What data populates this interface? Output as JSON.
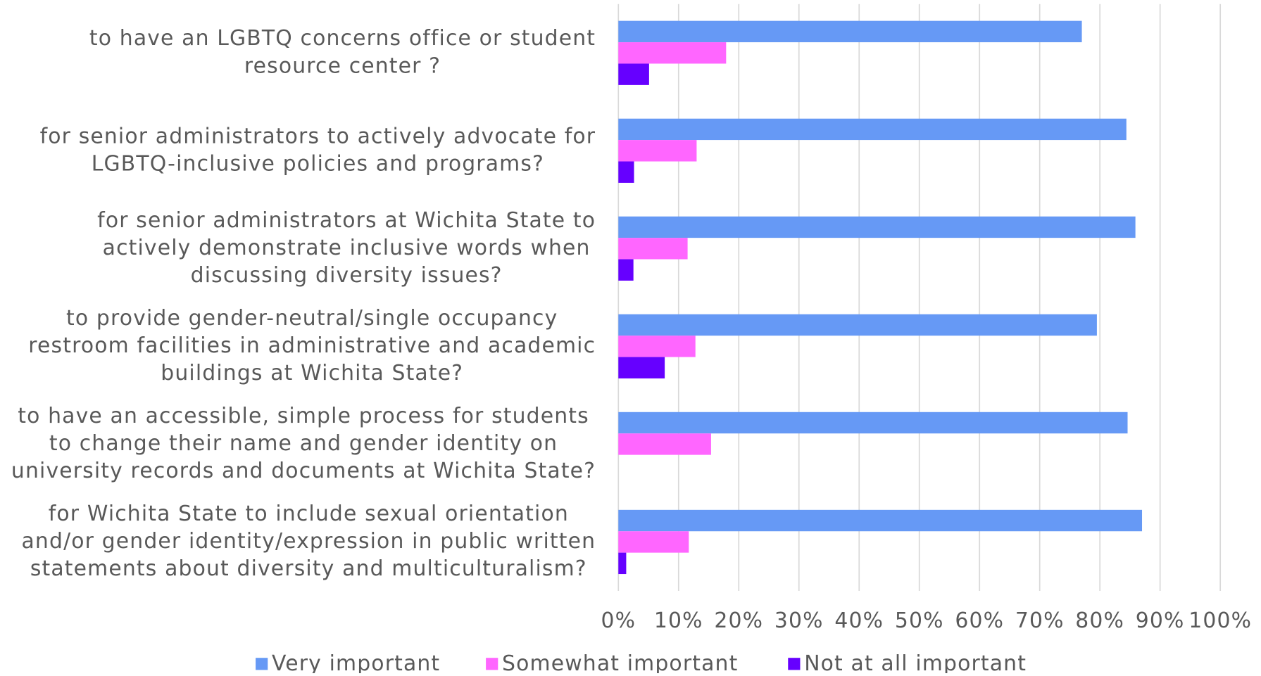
{
  "chart_data": {
    "type": "bar",
    "orientation": "horizontal",
    "categories": [
      [
        "to have an LGBTQ concerns office or student",
        "resource center ?"
      ],
      [
        "for senior administrators to actively advocate for",
        "LGBTQ-inclusive policies and programs?"
      ],
      [
        "for senior administrators at Wichita State to",
        "actively demonstrate inclusive words when",
        "discussing diversity issues?"
      ],
      [
        "to provide gender-neutral/single occupancy",
        "restroom facilities in administrative and academic",
        "buildings at Wichita State?"
      ],
      [
        "to have an accessible, simple process for students",
        "to change their name and gender identity on",
        "university records and documents at Wichita State?"
      ],
      [
        "for Wichita State to include sexual orientation",
        "and/or gender identity/expression in public written",
        "statements about diversity and multiculturalism?"
      ]
    ],
    "series": [
      {
        "name": "Very important",
        "color": "#6699f5",
        "values": [
          77,
          84.4,
          85.9,
          79.5,
          84.6,
          87
        ]
      },
      {
        "name": "Somewhat important",
        "color": "#ff66ff",
        "values": [
          17.9,
          13,
          11.5,
          12.8,
          15.4,
          11.7
        ]
      },
      {
        "name": "Not at all important",
        "color": "#6600ff",
        "values": [
          5.1,
          2.6,
          2.5,
          7.7,
          0,
          1.3
        ]
      }
    ],
    "xlim": [
      0,
      100
    ],
    "xticks": [
      {
        "value": 0,
        "label": "0%"
      },
      {
        "value": 10,
        "label": "10%"
      },
      {
        "value": 20,
        "label": "20%"
      },
      {
        "value": 30,
        "label": "30%"
      },
      {
        "value": 40,
        "label": "40%"
      },
      {
        "value": 50,
        "label": "50%"
      },
      {
        "value": 60,
        "label": "60%"
      },
      {
        "value": 70,
        "label": "70%"
      },
      {
        "value": 80,
        "label": "80%"
      },
      {
        "value": 90,
        "label": "90%"
      },
      {
        "value": 100,
        "label": "100%"
      }
    ],
    "grid": true,
    "legend": "bottom"
  }
}
